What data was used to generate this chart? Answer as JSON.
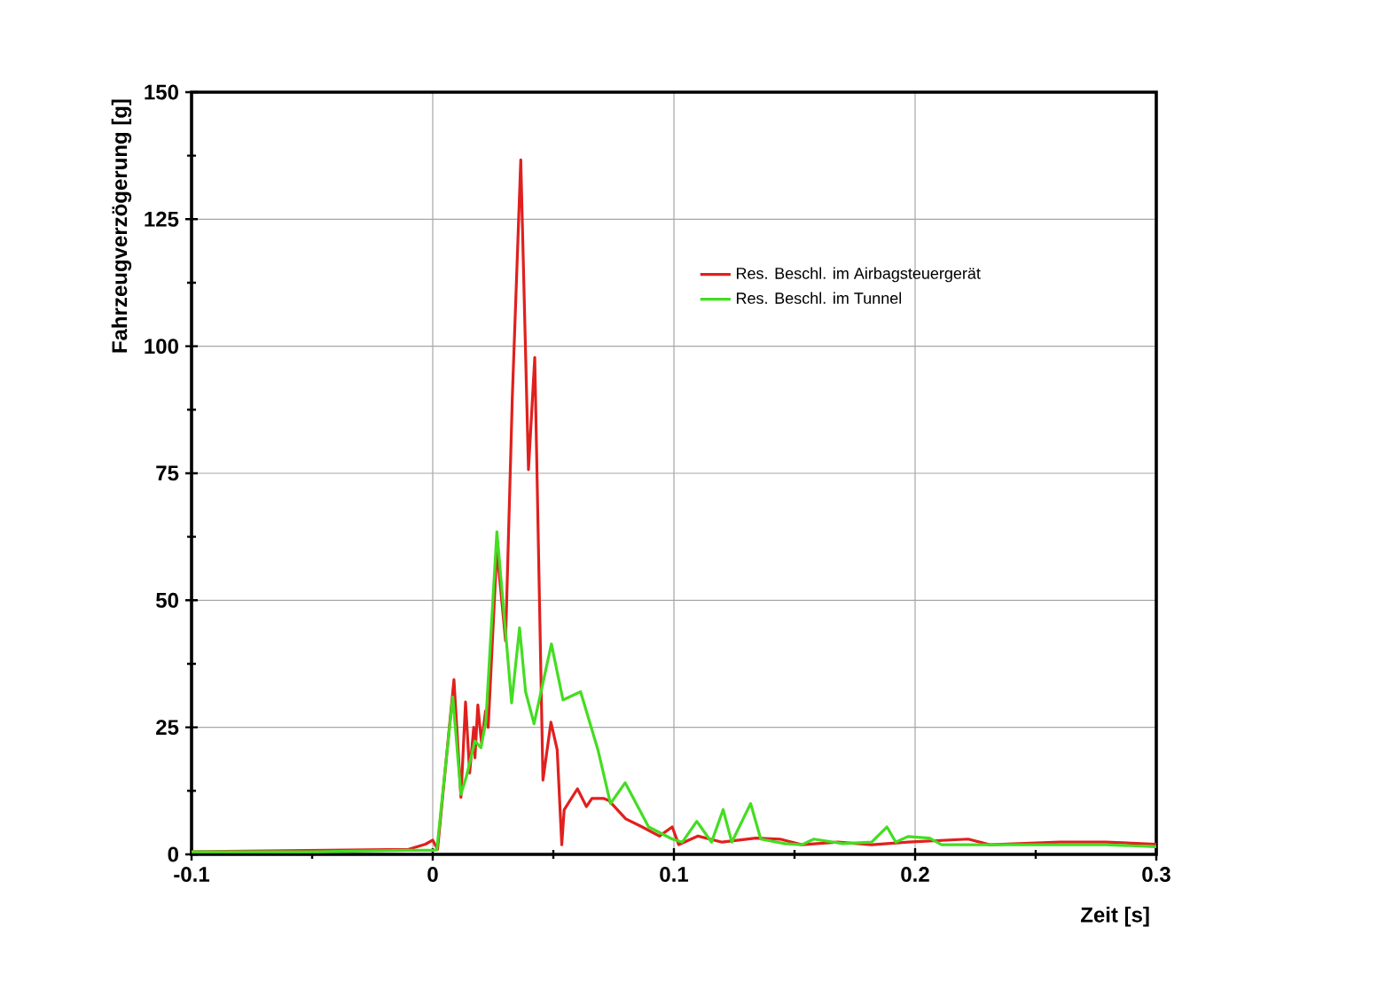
{
  "chart_data": {
    "type": "line",
    "xlabel": "Zeit [s]",
    "ylabel": "Fahrzeugverzögerung  [g]",
    "xlim": [
      -0.1,
      0.3
    ],
    "ylim": [
      0,
      150
    ],
    "xticks": [
      -0.1,
      0,
      0.1,
      0.2,
      0.3
    ],
    "yticks": [
      0,
      25,
      50,
      75,
      100,
      125,
      150
    ],
    "grid": true,
    "legend": "top right",
    "marker": "none",
    "line_style": "solid",
    "series": [
      {
        "name": "Res. Beschl. im Airbagsteuergerät",
        "color": "#e0201e",
        "x": [
          -0.1,
          -0.01,
          -0.003,
          0.0,
          0.002,
          0.0088,
          0.0117,
          0.0136,
          0.0153,
          0.017,
          0.0175,
          0.0187,
          0.0202,
          0.0219,
          0.023,
          0.0266,
          0.0302,
          0.033,
          0.0365,
          0.0397,
          0.0423,
          0.0457,
          0.049,
          0.0516,
          0.0535,
          0.0545,
          0.06,
          0.0637,
          0.066,
          0.071,
          0.073,
          0.08,
          0.0868,
          0.094,
          0.0993,
          0.102,
          0.11,
          0.12,
          0.134,
          0.144,
          0.153,
          0.168,
          0.182,
          0.197,
          0.222,
          0.231,
          0.26,
          0.279,
          0.3
        ],
        "values": [
          0.5,
          1,
          2,
          2.8,
          1,
          34.4,
          11.2,
          30,
          16,
          25,
          19,
          29.4,
          22,
          28.2,
          25,
          60,
          42,
          90,
          136.7,
          75.7,
          97.8,
          14.6,
          26,
          20.6,
          1.9,
          8.8,
          12.9,
          9.4,
          11,
          11,
          10.6,
          7,
          5.4,
          3.6,
          5.4,
          1.9,
          3.6,
          2.4,
          3.2,
          3.0,
          1.9,
          2.4,
          1.9,
          2.4,
          3.0,
          1.9,
          2.4,
          2.4,
          2
        ]
      },
      {
        "name": "Res. Beschl. im Tunnel",
        "color": "#44dd22",
        "x": [
          -0.1,
          -0.05,
          -0.01,
          0.0,
          0.0017,
          0.0083,
          0.0117,
          0.014,
          0.0175,
          0.02,
          0.022,
          0.0266,
          0.03,
          0.0327,
          0.036,
          0.0385,
          0.042,
          0.0492,
          0.054,
          0.0613,
          0.0686,
          0.0737,
          0.0798,
          0.0895,
          0.0993,
          0.1035,
          0.1095,
          0.1156,
          0.1204,
          0.124,
          0.1318,
          0.136,
          0.146,
          0.153,
          0.158,
          0.17,
          0.182,
          0.1883,
          0.192,
          0.197,
          0.206,
          0.211,
          0.23,
          0.255,
          0.279,
          0.3
        ],
        "values": [
          0.5,
          0.5,
          0.8,
          0.8,
          0.9,
          31,
          11.8,
          15.4,
          22.3,
          21,
          26,
          63.5,
          44.9,
          29.8,
          44.6,
          32.0,
          25.7,
          41.4,
          30.4,
          32.0,
          20.4,
          10,
          14.1,
          5.4,
          3.0,
          2.4,
          6.5,
          2.4,
          8.8,
          2.4,
          10,
          3.0,
          2.1,
          1.9,
          3.0,
          2.1,
          2.4,
          5.4,
          2.4,
          3.5,
          3.2,
          1.9,
          1.9,
          1.9,
          1.9,
          1.5
        ]
      }
    ]
  }
}
